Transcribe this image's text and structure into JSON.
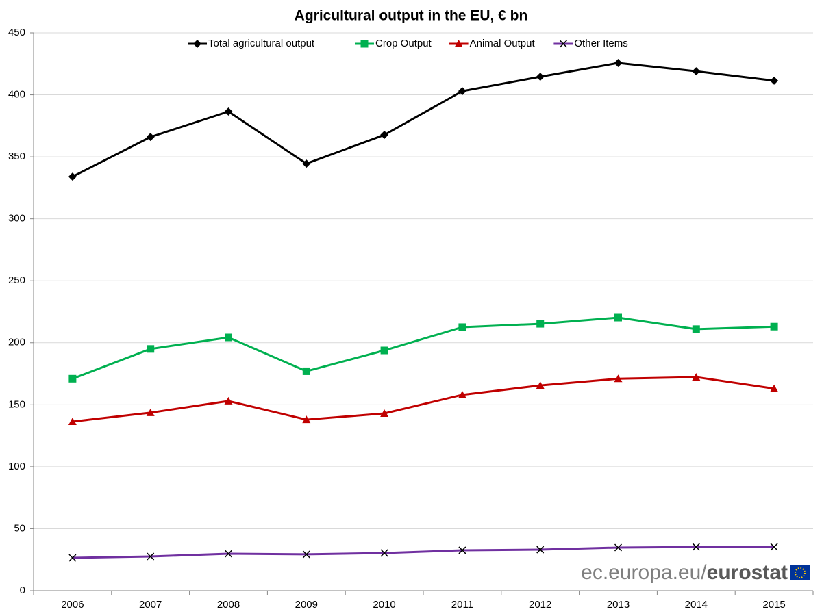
{
  "chart_data": {
    "type": "line",
    "title": "Agricultural output in the EU, € bn",
    "categories": [
      "2006",
      "2007",
      "2008",
      "2009",
      "2010",
      "2011",
      "2012",
      "2013",
      "2014",
      "2015"
    ],
    "series": [
      {
        "name": "Total agricultural output",
        "color": "#000000",
        "marker": "diamond",
        "values": [
          334,
          366,
          386.5,
          344.5,
          367.7,
          403,
          414.6,
          425.7,
          419,
          411.4
        ]
      },
      {
        "name": "Crop Output",
        "color": "#00b050",
        "marker": "square",
        "values": [
          171,
          195,
          204.3,
          177,
          193.8,
          212.6,
          215.3,
          220.3,
          211,
          213
        ]
      },
      {
        "name": "Animal Output",
        "color": "#c00000",
        "marker": "triangle",
        "values": [
          136.4,
          143.6,
          153,
          138,
          143,
          158,
          165.6,
          171,
          172.3,
          163
        ]
      },
      {
        "name": "Other Items",
        "color": "#7030a0",
        "marker": "x",
        "values": [
          26.5,
          27.6,
          29.8,
          29.3,
          30.4,
          32.6,
          33.1,
          34.8,
          35.3,
          35.3
        ]
      }
    ],
    "ylim": [
      0,
      450
    ],
    "yticks": [
      0,
      50,
      100,
      150,
      200,
      250,
      300,
      350,
      400,
      450
    ],
    "grid": true,
    "legend": "top",
    "source_site": "ec.europa.eu/",
    "source_brand": "eurostat"
  }
}
